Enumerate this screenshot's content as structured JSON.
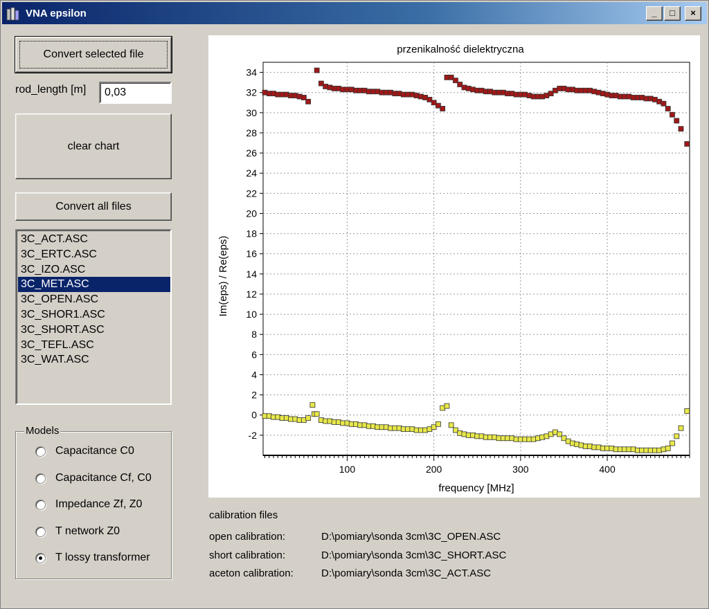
{
  "window": {
    "title": "VNA epsilon",
    "controls": {
      "minimize": "_",
      "maximize": "□",
      "close": "×"
    }
  },
  "left_panel": {
    "convert_selected_label": "Convert selected file",
    "rod_length_label": "rod_length [m]",
    "rod_length_value": "0,03",
    "clear_chart_label": "clear chart",
    "convert_all_label": "Convert all files",
    "files": [
      {
        "name": "3C_ACT.ASC",
        "selected": false
      },
      {
        "name": "3C_ERTC.ASC",
        "selected": false
      },
      {
        "name": "3C_IZO.ASC",
        "selected": false
      },
      {
        "name": "3C_MET.ASC",
        "selected": true
      },
      {
        "name": "3C_OPEN.ASC",
        "selected": false
      },
      {
        "name": "3C_SHOR1.ASC",
        "selected": false
      },
      {
        "name": "3C_SHORT.ASC",
        "selected": false
      },
      {
        "name": "3C_TEFL.ASC",
        "selected": false
      },
      {
        "name": "3C_WAT.ASC",
        "selected": false
      }
    ],
    "models_label": "Models",
    "models": [
      {
        "label": "Capacitance C0",
        "checked": false
      },
      {
        "label": "Capacitance Cf, C0",
        "checked": false
      },
      {
        "label": "Impedance Zf, Z0",
        "checked": false
      },
      {
        "label": "T network Z0",
        "checked": false
      },
      {
        "label": "T lossy transformer",
        "checked": true
      }
    ]
  },
  "calibration": {
    "header": "calibration files",
    "rows": [
      {
        "label": "open calibration:",
        "path": "D:\\pomiary\\sonda 3cm\\3C_OPEN.ASC"
      },
      {
        "label": "short calibration:",
        "path": "D:\\pomiary\\sonda 3cm\\3C_SHORT.ASC"
      },
      {
        "label": "aceton calibration:",
        "path": "D:\\pomiary\\sonda 3cm\\3C_ACT.ASC"
      }
    ]
  },
  "colors": {
    "selection": "#0a246a",
    "real_series": "#a01818",
    "imag_series": "#e8e84a"
  },
  "chart_data": {
    "type": "scatter",
    "title": "przenikalność dielektryczna",
    "xlabel": "frequency [MHz]",
    "ylabel": "Im(eps) / Re(eps)",
    "xlim": [
      3,
      495
    ],
    "ylim": [
      -4,
      35
    ],
    "xticks": [
      100,
      200,
      300,
      400
    ],
    "yticks": [
      -2,
      0,
      2,
      4,
      6,
      8,
      10,
      12,
      14,
      16,
      18,
      20,
      22,
      24,
      26,
      28,
      30,
      32,
      34
    ],
    "grid": true,
    "series": [
      {
        "color": "#a01818",
        "points": [
          [
            5,
            32
          ],
          [
            10,
            31.9
          ],
          [
            15,
            31.9
          ],
          [
            20,
            31.8
          ],
          [
            25,
            31.8
          ],
          [
            30,
            31.8
          ],
          [
            35,
            31.7
          ],
          [
            40,
            31.7
          ],
          [
            45,
            31.6
          ],
          [
            50,
            31.5
          ],
          [
            55,
            31.1
          ],
          [
            65,
            34.2
          ],
          [
            70,
            32.9
          ],
          [
            75,
            32.6
          ],
          [
            80,
            32.5
          ],
          [
            85,
            32.4
          ],
          [
            90,
            32.4
          ],
          [
            95,
            32.3
          ],
          [
            100,
            32.3
          ],
          [
            105,
            32.3
          ],
          [
            110,
            32.2
          ],
          [
            115,
            32.2
          ],
          [
            120,
            32.2
          ],
          [
            125,
            32.1
          ],
          [
            130,
            32.1
          ],
          [
            135,
            32.1
          ],
          [
            140,
            32
          ],
          [
            145,
            32
          ],
          [
            150,
            32
          ],
          [
            155,
            31.9
          ],
          [
            160,
            31.9
          ],
          [
            165,
            31.8
          ],
          [
            170,
            31.8
          ],
          [
            175,
            31.8
          ],
          [
            180,
            31.7
          ],
          [
            185,
            31.6
          ],
          [
            190,
            31.5
          ],
          [
            195,
            31.3
          ],
          [
            200,
            31
          ],
          [
            205,
            30.7
          ],
          [
            210,
            30.4
          ],
          [
            215,
            33.5
          ],
          [
            220,
            33.5
          ],
          [
            225,
            33.2
          ],
          [
            230,
            32.8
          ],
          [
            235,
            32.5
          ],
          [
            240,
            32.4
          ],
          [
            245,
            32.3
          ],
          [
            250,
            32.2
          ],
          [
            255,
            32.2
          ],
          [
            260,
            32.1
          ],
          [
            265,
            32.1
          ],
          [
            270,
            32
          ],
          [
            275,
            32
          ],
          [
            280,
            32
          ],
          [
            285,
            31.9
          ],
          [
            290,
            31.9
          ],
          [
            295,
            31.8
          ],
          [
            300,
            31.8
          ],
          [
            305,
            31.8
          ],
          [
            310,
            31.7
          ],
          [
            315,
            31.6
          ],
          [
            320,
            31.6
          ],
          [
            325,
            31.6
          ],
          [
            330,
            31.7
          ],
          [
            335,
            31.9
          ],
          [
            340,
            32.2
          ],
          [
            345,
            32.4
          ],
          [
            350,
            32.4
          ],
          [
            355,
            32.3
          ],
          [
            360,
            32.3
          ],
          [
            365,
            32.2
          ],
          [
            370,
            32.2
          ],
          [
            375,
            32.2
          ],
          [
            380,
            32.2
          ],
          [
            385,
            32.1
          ],
          [
            390,
            32
          ],
          [
            395,
            31.9
          ],
          [
            400,
            31.8
          ],
          [
            405,
            31.7
          ],
          [
            410,
            31.7
          ],
          [
            415,
            31.6
          ],
          [
            420,
            31.6
          ],
          [
            425,
            31.6
          ],
          [
            430,
            31.5
          ],
          [
            435,
            31.5
          ],
          [
            440,
            31.5
          ],
          [
            445,
            31.4
          ],
          [
            450,
            31.4
          ],
          [
            455,
            31.3
          ],
          [
            460,
            31.1
          ],
          [
            465,
            30.9
          ],
          [
            470,
            30.4
          ],
          [
            475,
            29.8
          ],
          [
            480,
            29.2
          ],
          [
            485,
            28.4
          ],
          [
            492,
            26.9
          ]
        ]
      },
      {
        "color": "#e8e84a",
        "points": [
          [
            5,
            -0.1
          ],
          [
            10,
            -0.1
          ],
          [
            15,
            -0.2
          ],
          [
            20,
            -0.2
          ],
          [
            25,
            -0.3
          ],
          [
            30,
            -0.3
          ],
          [
            35,
            -0.4
          ],
          [
            40,
            -0.4
          ],
          [
            45,
            -0.5
          ],
          [
            50,
            -0.5
          ],
          [
            55,
            -0.3
          ],
          [
            60,
            1
          ],
          [
            62,
            0.1
          ],
          [
            65,
            0.1
          ],
          [
            70,
            -0.5
          ],
          [
            75,
            -0.6
          ],
          [
            80,
            -0.6
          ],
          [
            85,
            -0.7
          ],
          [
            90,
            -0.7
          ],
          [
            95,
            -0.8
          ],
          [
            100,
            -0.8
          ],
          [
            105,
            -0.9
          ],
          [
            110,
            -0.9
          ],
          [
            115,
            -1
          ],
          [
            120,
            -1
          ],
          [
            125,
            -1.1
          ],
          [
            130,
            -1.1
          ],
          [
            135,
            -1.2
          ],
          [
            140,
            -1.2
          ],
          [
            145,
            -1.2
          ],
          [
            150,
            -1.3
          ],
          [
            155,
            -1.3
          ],
          [
            160,
            -1.3
          ],
          [
            165,
            -1.4
          ],
          [
            170,
            -1.4
          ],
          [
            175,
            -1.4
          ],
          [
            180,
            -1.5
          ],
          [
            185,
            -1.5
          ],
          [
            190,
            -1.5
          ],
          [
            195,
            -1.4
          ],
          [
            200,
            -1.2
          ],
          [
            205,
            -0.9
          ],
          [
            210,
            0.7
          ],
          [
            215,
            0.9
          ],
          [
            220,
            -1
          ],
          [
            225,
            -1.5
          ],
          [
            230,
            -1.8
          ],
          [
            235,
            -1.9
          ],
          [
            240,
            -2
          ],
          [
            245,
            -2
          ],
          [
            250,
            -2.1
          ],
          [
            255,
            -2.1
          ],
          [
            260,
            -2.2
          ],
          [
            265,
            -2.2
          ],
          [
            270,
            -2.2
          ],
          [
            275,
            -2.3
          ],
          [
            280,
            -2.3
          ],
          [
            285,
            -2.3
          ],
          [
            290,
            -2.3
          ],
          [
            295,
            -2.4
          ],
          [
            300,
            -2.4
          ],
          [
            305,
            -2.4
          ],
          [
            310,
            -2.4
          ],
          [
            315,
            -2.4
          ],
          [
            320,
            -2.3
          ],
          [
            325,
            -2.2
          ],
          [
            330,
            -2.1
          ],
          [
            335,
            -1.9
          ],
          [
            340,
            -1.7
          ],
          [
            345,
            -1.9
          ],
          [
            350,
            -2.3
          ],
          [
            355,
            -2.6
          ],
          [
            360,
            -2.8
          ],
          [
            365,
            -2.9
          ],
          [
            370,
            -3
          ],
          [
            375,
            -3.1
          ],
          [
            380,
            -3.1
          ],
          [
            385,
            -3.2
          ],
          [
            390,
            -3.2
          ],
          [
            395,
            -3.3
          ],
          [
            400,
            -3.3
          ],
          [
            405,
            -3.3
          ],
          [
            410,
            -3.4
          ],
          [
            415,
            -3.4
          ],
          [
            420,
            -3.4
          ],
          [
            425,
            -3.4
          ],
          [
            430,
            -3.4
          ],
          [
            435,
            -3.5
          ],
          [
            440,
            -3.5
          ],
          [
            445,
            -3.5
          ],
          [
            450,
            -3.5
          ],
          [
            455,
            -3.5
          ],
          [
            460,
            -3.5
          ],
          [
            465,
            -3.4
          ],
          [
            470,
            -3.3
          ],
          [
            475,
            -2.8
          ],
          [
            480,
            -2.1
          ],
          [
            485,
            -1.3
          ],
          [
            492,
            0.4
          ]
        ]
      }
    ]
  }
}
